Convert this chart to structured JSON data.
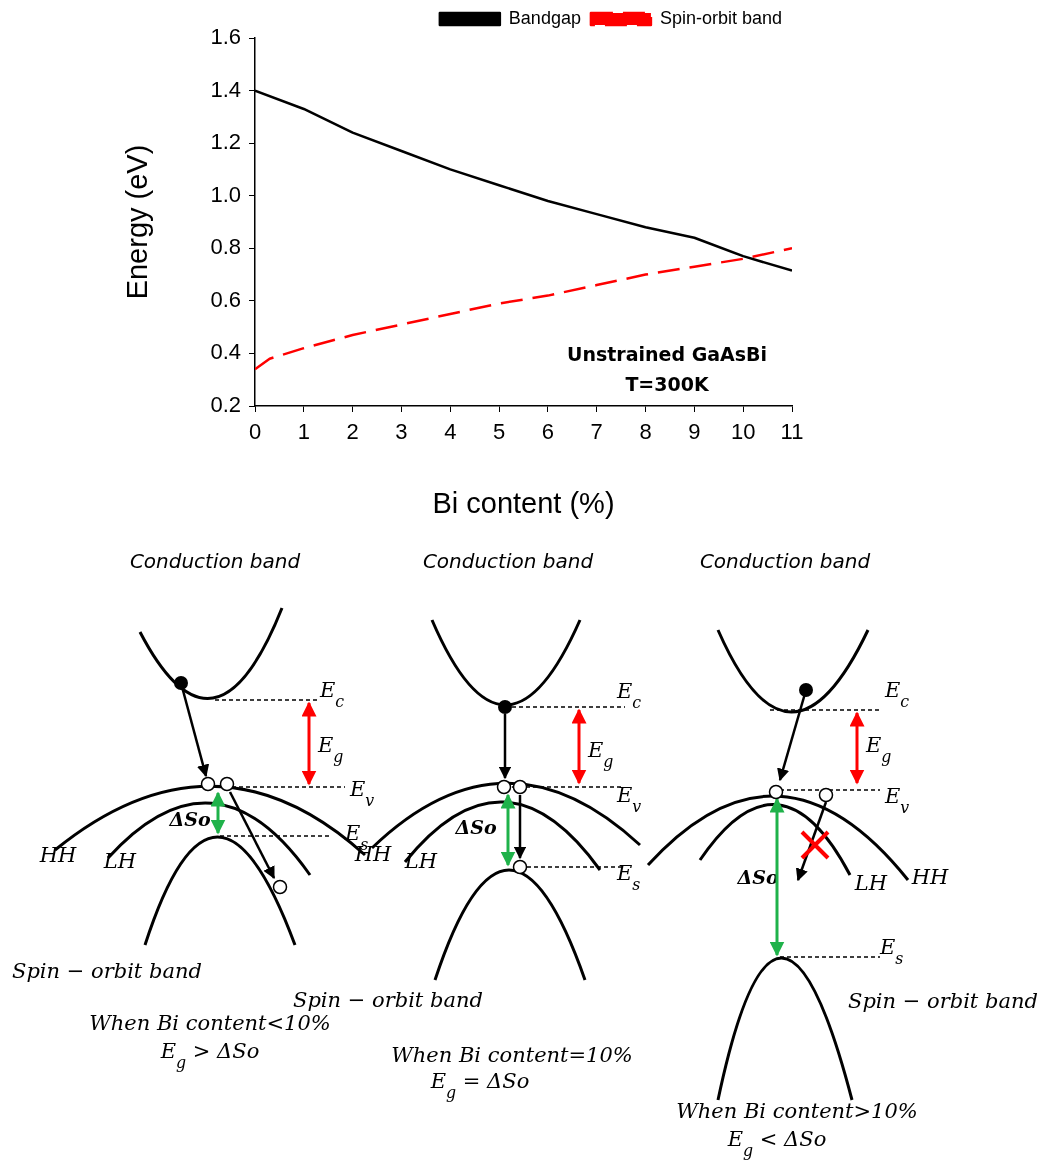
{
  "chart_data": {
    "type": "line",
    "xlabel": "Bi content (%)",
    "ylabel": "Energy (eV)",
    "xlim": [
      0,
      11
    ],
    "xticks": [
      0,
      1,
      2,
      3,
      4,
      5,
      6,
      7,
      8,
      9,
      10,
      11
    ],
    "ylim": [
      0.2,
      1.6
    ],
    "yticks": [
      0.2,
      0.4,
      0.6,
      0.8,
      {
        "value": 1,
        "label": "1.0"
      },
      1.2,
      1.4,
      1.6
    ],
    "grid": false,
    "legend": "top right",
    "marker": "none",
    "series": [
      {
        "name": "Bandgap",
        "color": "#000000",
        "line_style": "solid",
        "x": [
          0,
          1,
          2,
          3,
          4,
          5,
          6,
          7,
          8,
          9,
          10,
          11
        ],
        "values": [
          1.4,
          1.33,
          1.24,
          1.17,
          1.1,
          1.04,
          0.98,
          0.93,
          0.88,
          0.84,
          0.77,
          0.715
        ]
      },
      {
        "name": "Spin-orbit band",
        "color": "#ff0000",
        "line_style": "dashed",
        "x": [
          0,
          0.3,
          1,
          2,
          3,
          4,
          5,
          6,
          7,
          8,
          9,
          10,
          11
        ],
        "values": [
          0.34,
          0.38,
          0.42,
          0.47,
          0.51,
          0.55,
          0.59,
          0.62,
          0.66,
          0.7,
          0.73,
          0.76,
          0.8
        ]
      }
    ],
    "annotations": [
      "Unstrained GaAsBi",
      "T=300K",
      "Conduction band",
      "E$_{c}$",
      "E$_{g}$",
      "E$_{v}$",
      "ΔSo",
      "E$_{s}$",
      "HH",
      "LH",
      "Spin − orbit band",
      "When Bi content<10%",
      "E$_{g}$ > ΔSo",
      "Conduction band",
      "E$_{c}$",
      "E$_{g}$",
      "E$_{v}$",
      "ΔSo",
      "E$_{s}$",
      "HH",
      "LH",
      "Spin − orbit band",
      "When Bi content=10%",
      "E$_{g}$ = ΔSo",
      "Conduction band",
      "E$_{c}$",
      "E$_{g}$",
      "E$_{v}$",
      "ΔSo",
      "LH",
      "HH",
      "E$_{s}$",
      "Spin − orbit band",
      "When Bi content>10%",
      "E$_{g}$ < ΔSo"
    ]
  }
}
